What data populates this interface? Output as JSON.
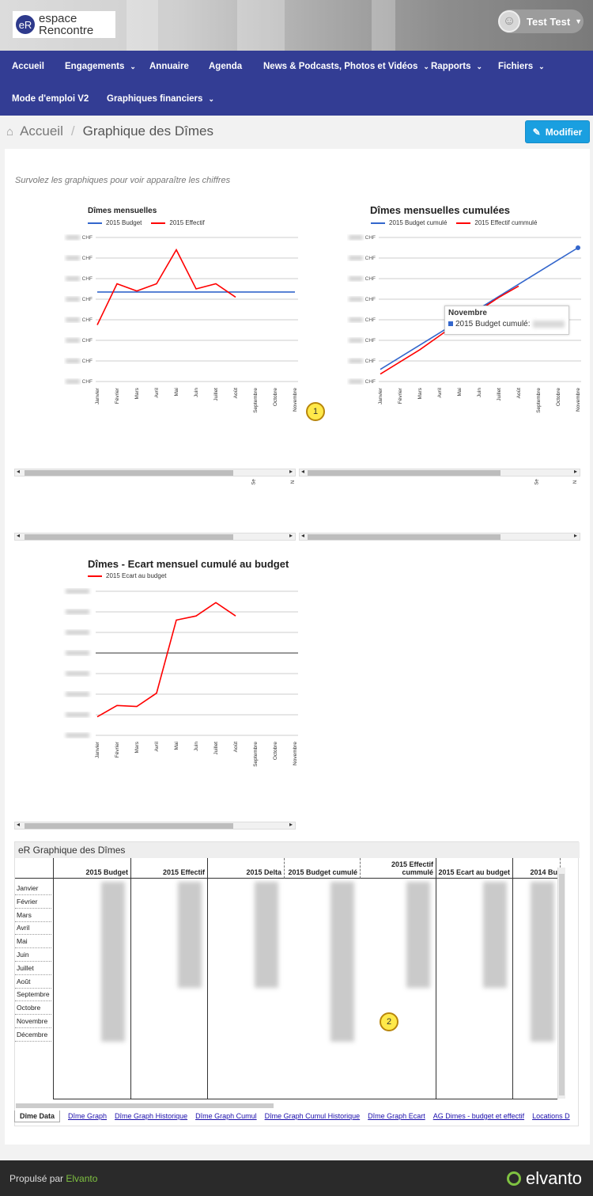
{
  "header": {
    "logo_badge": "eR",
    "logo_line1": "espace",
    "logo_line2": "Rencontre",
    "user_name": "Test Test"
  },
  "nav": {
    "items": [
      {
        "label": "Accueil",
        "dropdown": false
      },
      {
        "label": "Engagements",
        "dropdown": true
      },
      {
        "label": "Annuaire",
        "dropdown": false
      },
      {
        "label": "Agenda",
        "dropdown": false
      },
      {
        "label": "News & Podcasts, Photos et Vidéos",
        "dropdown": true
      },
      {
        "label": "Rapports",
        "dropdown": true
      },
      {
        "label": "Fichiers",
        "dropdown": true
      },
      {
        "label": "Mode d'emploi V2",
        "dropdown": false
      },
      {
        "label": "Graphiques financiers",
        "dropdown": true
      }
    ]
  },
  "breadcrumb": {
    "home": "Accueil",
    "current": "Graphique des Dîmes"
  },
  "edit_button": "Modifier",
  "hint": "Survolez les graphiques pour voir apparaître les chiffres",
  "months": [
    "Janvier",
    "Février",
    "Mars",
    "Avril",
    "Mai",
    "Juin",
    "Juillet",
    "Août",
    "Septembre",
    "Octobre",
    "Novembre"
  ],
  "months_all": [
    "Janvier",
    "Février",
    "Mars",
    "Avril",
    "Mai",
    "Juin",
    "Juillet",
    "Août",
    "Septembre",
    "Octobre",
    "Novembre",
    "Décembre"
  ],
  "y_unit": "CHF",
  "scroll_cut": {
    "a": "Se",
    "b": "N"
  },
  "colors": {
    "blue": "#3366cc",
    "red": "#ff0000",
    "nav": "#333d94",
    "accent": "#1a9fe0"
  },
  "chart_data": [
    {
      "type": "line",
      "title": "Dîmes mensuelles",
      "categories": [
        "Janvier",
        "Février",
        "Mars",
        "Avril",
        "Mai",
        "Juin",
        "Juillet",
        "Août",
        "Septembre",
        "Octobre",
        "Novembre"
      ],
      "series": [
        {
          "name": "2015 Budget",
          "values": [
            4.35,
            4.35,
            4.35,
            4.35,
            4.35,
            4.35,
            4.35,
            4.35,
            4.35,
            4.35,
            4.35
          ]
        },
        {
          "name": "2015 Effectif",
          "values": [
            2.75,
            4.75,
            4.4,
            4.75,
            6.4,
            4.5,
            4.75,
            4.1,
            null,
            null,
            null
          ]
        }
      ]
    },
    {
      "type": "line",
      "title": "Dîmes mensuelles cumulées",
      "categories": [
        "Janvier",
        "Février",
        "Mars",
        "Avril",
        "Mai",
        "Juin",
        "Juillet",
        "Août",
        "Septembre",
        "Octobre",
        "Novembre"
      ],
      "series": [
        {
          "name": "2015 Budget cumulé",
          "values": [
            0.65,
            1.3,
            1.95,
            2.6,
            3.25,
            3.9,
            4.55,
            5.2,
            5.85,
            6.5,
            7.15
          ]
        },
        {
          "name": "2015 Effectif cummulé",
          "values": [
            0.4,
            1.05,
            1.7,
            2.45,
            3.2,
            3.8,
            4.5,
            5.1,
            null,
            null,
            null
          ]
        }
      ],
      "tooltip": {
        "title": "Novembre",
        "label": "2015 Budget cumulé:"
      }
    },
    {
      "type": "line",
      "title": "Dîmes - Ecart mensuel cumulé au budget",
      "categories": [
        "Janvier",
        "Février",
        "Mars",
        "Avril",
        "Mai",
        "Juin",
        "Juillet",
        "Août",
        "Septembre",
        "Octobre",
        "Novembre"
      ],
      "series": [
        {
          "name": "2015 Ecart au budget",
          "values": [
            -3.1,
            -2.55,
            -2.6,
            -1.95,
            1.6,
            1.8,
            2.45,
            1.8,
            null,
            null,
            null
          ]
        }
      ]
    }
  ],
  "table": {
    "title": "eR Graphique des Dîmes",
    "columns": [
      "2015 Budget",
      "2015 Effectif",
      "2015 Delta",
      "2015 Budget cumulé",
      "2015 Effectif cummulé",
      "2015 Ecart au budget",
      "2014 Bu"
    ]
  },
  "tabs": [
    "Dîme Data",
    "Dîme Graph",
    "Dîme Graph Historique",
    "Dîme Graph Cumul",
    "Dîme Graph Cumul Historique",
    "Dîme Graph Ecart",
    "AG Dimes - budget et effectif",
    "Locations D"
  ],
  "markers": [
    "1",
    "2"
  ],
  "footer": {
    "prefix": "Propulsé par",
    "link": "Elvanto",
    "brand": "elvanto"
  }
}
